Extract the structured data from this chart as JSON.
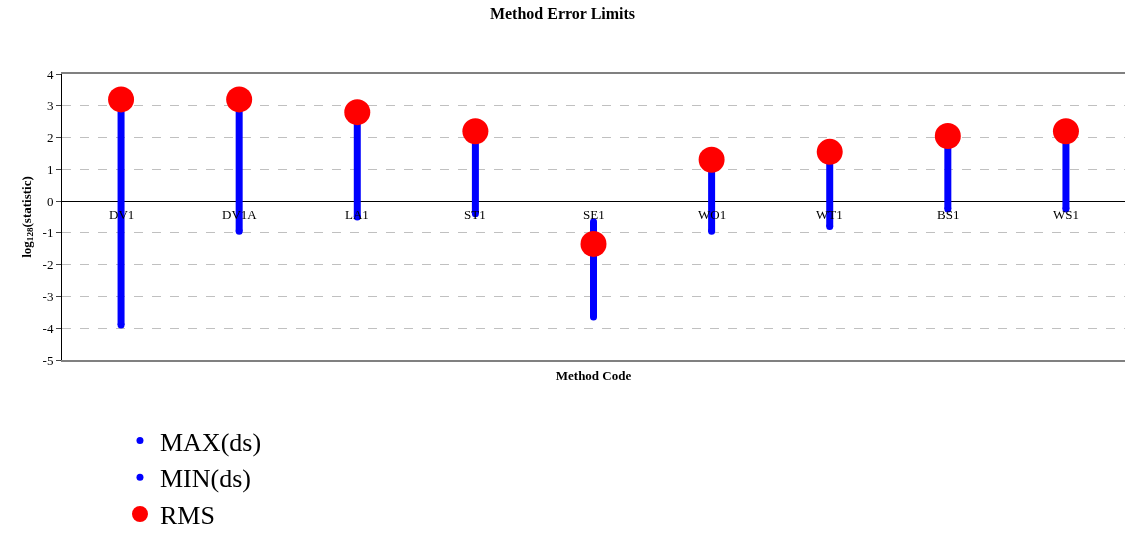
{
  "chart_data": {
    "type": "scatter",
    "title": "Method Error Limits",
    "xlabel": "Method Code",
    "ylabel": "log$_{128}$(statistic)",
    "categories": [
      "DV1",
      "DV1A",
      "LA1",
      "ST1",
      "SE1",
      "WO1",
      "WT1",
      "BS1",
      "WS1"
    ],
    "series": [
      {
        "name": "MAX(ds)",
        "color": "#0000ff",
        "marker": "circle",
        "values": [
          null,
          null,
          null,
          null,
          -0.65,
          null,
          null,
          null,
          null
        ]
      },
      {
        "name": "MIN(ds)",
        "color": "#0000ff",
        "marker": "circle",
        "values": [
          -3.9,
          -0.95,
          -0.5,
          -0.4,
          -3.65,
          -0.95,
          -0.8,
          -0.25,
          -0.25
        ]
      },
      {
        "name": "RMS",
        "color": "#ff0000",
        "marker": "circle",
        "values": [
          3.2,
          3.2,
          2.8,
          2.2,
          -1.35,
          1.3,
          1.55,
          2.05,
          2.2
        ]
      }
    ],
    "ylim": [
      -5,
      4
    ],
    "yticks": [
      -5,
      -4,
      -3,
      -2,
      -1,
      0,
      1,
      2,
      3,
      4
    ],
    "grid": "y",
    "legend": "bottom"
  }
}
